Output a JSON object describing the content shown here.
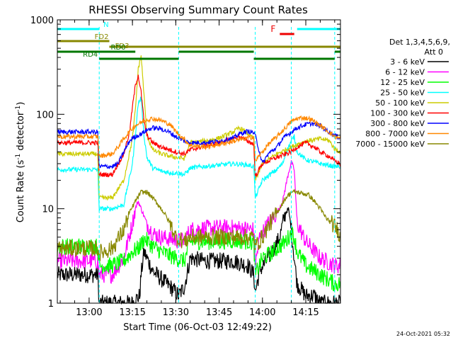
{
  "chart_data": {
    "type": "line",
    "title": "RHESSI Observing Summary Count Rates",
    "xlabel": "Start Time (06-Oct-03 12:49:22)",
    "ylabel_main": "Count Rate (s",
    "ylabel_sup1": "-1",
    "ylabel_mid": " detector",
    "ylabel_sup2": "-1",
    "ylabel_end": ")",
    "y_scale": "log",
    "ylim": [
      1,
      1000
    ],
    "xlim_min": [
      -11,
      87
    ],
    "x_ticks": [
      {
        "label": "13:00",
        "min": 0
      },
      {
        "label": "13:15",
        "min": 15
      },
      {
        "label": "13:30",
        "min": 30
      },
      {
        "label": "13:45",
        "min": 45
      },
      {
        "label": "14:00",
        "min": 60
      },
      {
        "label": "14:15",
        "min": 75
      }
    ],
    "y_ticks": [
      {
        "label": "1",
        "value": 1
      },
      {
        "label": "10",
        "value": 10
      },
      {
        "label": "100",
        "value": 100
      },
      {
        "label": "1000",
        "value": 1000
      }
    ],
    "legend_header": [
      "Det 1,3,4,5,6,9,",
      "Att 0"
    ],
    "legend_placement": "right",
    "timestamp": "24-Oct-2021 05:32",
    "series": [
      {
        "name": "3 - 6 keV",
        "color": "#000000",
        "x": [
          -11,
          3,
          3.5,
          15,
          17.5,
          18,
          19,
          20,
          22,
          25,
          28,
          29,
          30,
          31,
          33,
          35,
          40,
          45,
          50,
          55,
          57,
          57.5,
          59,
          62,
          64,
          66,
          67,
          68,
          69,
          70,
          71,
          72,
          75,
          78,
          80,
          82,
          84,
          87
        ],
        "y": [
          2,
          2,
          1,
          1,
          1.2,
          2,
          3.5,
          3,
          2.2,
          1.8,
          1.5,
          1.4,
          1.3,
          1.2,
          1.5,
          3,
          2.8,
          2.8,
          2.8,
          2.5,
          2,
          1.3,
          2.2,
          3,
          3.8,
          5,
          7,
          9,
          10,
          6,
          3,
          1.6,
          1.2,
          1.2,
          1,
          1,
          1,
          1
        ]
      },
      {
        "name": "6 - 12 keV",
        "color": "#ff00ff",
        "x": [
          -11,
          0,
          3,
          3.5,
          8,
          12,
          15,
          16,
          17,
          18,
          20,
          22,
          25,
          28,
          30,
          33,
          35,
          40,
          45,
          50,
          55,
          57,
          57.5,
          59,
          62,
          65,
          67,
          68,
          69,
          70,
          71,
          72,
          75,
          80,
          85,
          87
        ],
        "y": [
          2.8,
          2.8,
          2.8,
          2,
          2,
          3,
          7,
          10,
          12,
          10,
          7,
          5.5,
          5,
          4.8,
          4.6,
          4.6,
          6,
          6.2,
          6.3,
          6.3,
          6.1,
          6,
          2.5,
          5,
          7,
          9,
          12,
          17,
          24,
          31,
          26,
          7,
          4.5,
          3,
          2.5,
          2.5
        ]
      },
      {
        "name": "12 - 25 keV",
        "color": "#00ff00",
        "x": [
          -11,
          0,
          3,
          3.5,
          8,
          12,
          15,
          17,
          18,
          19,
          20,
          22,
          25,
          30,
          33,
          35,
          40,
          45,
          50,
          55,
          57,
          57.5,
          60,
          63,
          66,
          68,
          69,
          70,
          71,
          72,
          75,
          80,
          85,
          87
        ],
        "y": [
          4,
          4,
          4,
          2.5,
          2.5,
          2.8,
          3.5,
          3.8,
          4.2,
          4.8,
          4.6,
          4,
          3.5,
          3,
          2.8,
          4.5,
          4.5,
          4.5,
          4.6,
          4.5,
          4.4,
          2,
          3,
          3.4,
          4,
          4.5,
          5,
          5.6,
          5,
          3.5,
          2.5,
          2,
          1.6,
          1.6
        ]
      },
      {
        "name": "25 - 50 keV",
        "color": "#00ffff",
        "x": [
          -11,
          0,
          3,
          3.5,
          8,
          12,
          15,
          16,
          17,
          18,
          19,
          20,
          22,
          25,
          28,
          30,
          33,
          35,
          40,
          45,
          50,
          55,
          57,
          57.5,
          60,
          65,
          67,
          68,
          69,
          70,
          71,
          72,
          75,
          80,
          85,
          87
        ],
        "y": [
          26,
          26,
          26,
          10,
          10,
          11,
          30,
          60,
          130,
          150,
          60,
          35,
          27,
          25,
          24,
          24,
          23,
          27,
          28,
          29,
          30,
          29,
          28,
          13,
          20,
          26,
          30,
          38,
          45,
          52,
          58,
          40,
          33,
          30,
          28,
          28
        ]
      },
      {
        "name": "50 - 100 keV",
        "color": "#cccc00",
        "x": [
          -11,
          0,
          3,
          3.5,
          8,
          12,
          15,
          16,
          17,
          18,
          19,
          20,
          22,
          25,
          28,
          30,
          33,
          35,
          40,
          45,
          50,
          52,
          55,
          57,
          57.5,
          60,
          65,
          70,
          72,
          75,
          80,
          83,
          85,
          87
        ],
        "y": [
          38,
          38,
          38,
          13,
          13,
          20,
          55,
          110,
          300,
          420,
          160,
          60,
          42,
          38,
          36,
          35,
          34,
          50,
          52,
          56,
          65,
          72,
          62,
          55,
          20,
          30,
          38,
          45,
          48,
          52,
          55,
          53,
          43,
          40
        ]
      },
      {
        "name": "100 - 300 keV",
        "color": "#ff0000",
        "x": [
          -11,
          0,
          3,
          3.5,
          8,
          12,
          14,
          15,
          16,
          17,
          18,
          19,
          20,
          22,
          25,
          28,
          30,
          33,
          35,
          40,
          45,
          50,
          52,
          55,
          57,
          57.5,
          60,
          65,
          70,
          72,
          75,
          78,
          80,
          83,
          85,
          87
        ],
        "y": [
          50,
          50,
          50,
          23,
          23,
          38,
          65,
          120,
          200,
          260,
          170,
          85,
          60,
          50,
          45,
          42,
          40,
          38,
          42,
          46,
          50,
          55,
          58,
          52,
          48,
          22,
          30,
          35,
          40,
          45,
          50,
          45,
          40,
          36,
          32,
          30
        ]
      },
      {
        "name": "300 - 800 keV",
        "color": "#0000ff",
        "x": [
          -11,
          0,
          3,
          3.5,
          8,
          10,
          12,
          14,
          15,
          16,
          18,
          20,
          22,
          25,
          28,
          30,
          33,
          35,
          40,
          45,
          50,
          52,
          55,
          57,
          57.5,
          60,
          62,
          65,
          67,
          70,
          72,
          75,
          77,
          80,
          82,
          85,
          87
        ],
        "y": [
          65,
          65,
          65,
          28,
          28,
          30,
          40,
          52,
          56,
          58,
          62,
          68,
          72,
          70,
          64,
          58,
          52,
          50,
          50,
          52,
          56,
          62,
          66,
          64,
          60,
          30,
          38,
          45,
          55,
          65,
          72,
          78,
          80,
          76,
          68,
          60,
          56
        ]
      },
      {
        "name": "800 - 7000 keV",
        "color": "#ff8800",
        "x": [
          -11,
          0,
          3,
          3.5,
          8,
          10,
          12,
          14,
          16,
          18,
          20,
          22,
          25,
          28,
          30,
          33,
          35,
          40,
          45,
          50,
          55,
          57,
          57.5,
          60,
          62,
          65,
          68,
          70,
          72,
          74,
          76,
          78,
          80,
          83,
          85,
          87
        ],
        "y": [
          58,
          58,
          58,
          36,
          38,
          45,
          55,
          66,
          76,
          82,
          88,
          90,
          86,
          78,
          66,
          54,
          47,
          45,
          48,
          52,
          56,
          58,
          32,
          40,
          48,
          58,
          72,
          84,
          90,
          92,
          90,
          84,
          76,
          65,
          58,
          55
        ]
      },
      {
        "name": "7000 - 15000 keV",
        "color": "#888800",
        "x": [
          -11,
          0,
          3,
          3.5,
          8,
          12,
          14,
          16,
          18,
          20,
          22,
          24,
          26,
          28,
          30,
          33,
          35,
          40,
          45,
          50,
          55,
          57,
          57.5,
          60,
          62,
          65,
          68,
          70,
          72,
          74,
          76,
          78,
          80,
          82,
          84,
          86,
          87
        ],
        "y": [
          3.8,
          3.8,
          3.8,
          3.4,
          3.8,
          6,
          9,
          12,
          15,
          15,
          13,
          11,
          9,
          7,
          5,
          4.5,
          5,
          5,
          5,
          5,
          5,
          5,
          4,
          5,
          6.5,
          9,
          13,
          15,
          15,
          14.5,
          14,
          12,
          10,
          8,
          7,
          6,
          5
        ]
      }
    ],
    "annotations": [
      {
        "label": "N",
        "kind": "bar",
        "color": "#00ffff",
        "x0": -11,
        "x1": 3.5,
        "level": 1
      },
      {
        "label": "",
        "kind": "bar",
        "color": "#00ffff",
        "x0": 72,
        "x1": 87,
        "level": 1
      },
      {
        "label": "F",
        "kind": "bar",
        "color": "#ee0000",
        "x0": 66,
        "x1": 71,
        "level": 2
      },
      {
        "label": "FD2",
        "kind": "bar",
        "color": "#888800",
        "x0": -11,
        "x1": 7,
        "level": 3
      },
      {
        "label": "FD3",
        "kind": "bar",
        "color": "#888800",
        "x0": 7,
        "x1": 87,
        "level": 4
      },
      {
        "label": "RD0",
        "kind": "bar",
        "color": "#007700",
        "x0": -11,
        "x1": 16,
        "level": 5
      },
      {
        "label": "",
        "kind": "bar",
        "color": "#007700",
        "x0": 31,
        "x1": 57,
        "level": 5
      },
      {
        "label": "",
        "kind": "bar",
        "color": "#007700",
        "x0": 85,
        "x1": 87,
        "level": 5
      },
      {
        "label": "RD4",
        "kind": "bar",
        "color": "#007700",
        "x0": 3.5,
        "x1": 31,
        "level": 6
      },
      {
        "label": "",
        "kind": "bar",
        "color": "#007700",
        "x0": 57,
        "x1": 85,
        "level": 6
      }
    ],
    "vlines_min": [
      -11,
      3.5,
      31,
      57.5,
      70,
      85
    ],
    "grid": false
  }
}
